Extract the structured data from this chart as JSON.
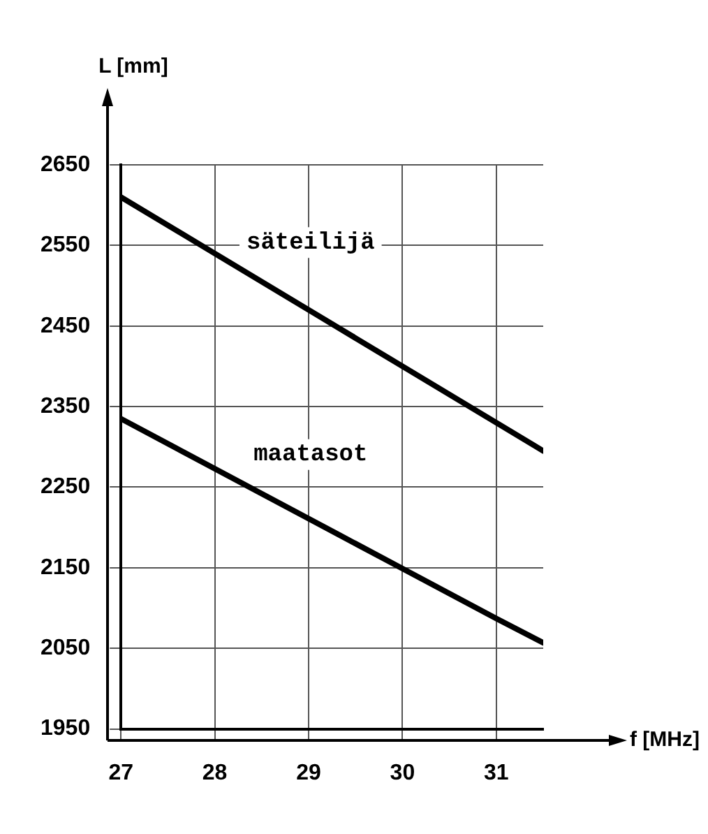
{
  "chart_data": {
    "type": "line",
    "xlabel": "f [MHz]",
    "ylabel": "L [mm]",
    "x": [
      27,
      28,
      29,
      30,
      31,
      31.5
    ],
    "series": [
      {
        "name": "säteilijä",
        "color": "#000000",
        "values": [
          2610,
          2540,
          2470,
          2400,
          2330,
          2295
        ]
      },
      {
        "name": "maatasot",
        "color": "#000000",
        "values": [
          2335,
          2273,
          2211,
          2149,
          2087,
          2057
        ]
      }
    ],
    "xlim": [
      27,
      31.5
    ],
    "xticks": [
      27,
      28,
      29,
      30,
      31
    ],
    "ylim": [
      1950,
      2650
    ],
    "yticks": [
      1950,
      2050,
      2150,
      2250,
      2350,
      2450,
      2550,
      2650
    ],
    "grid": true,
    "legend": false,
    "marker": "none",
    "line_style": "solid"
  }
}
